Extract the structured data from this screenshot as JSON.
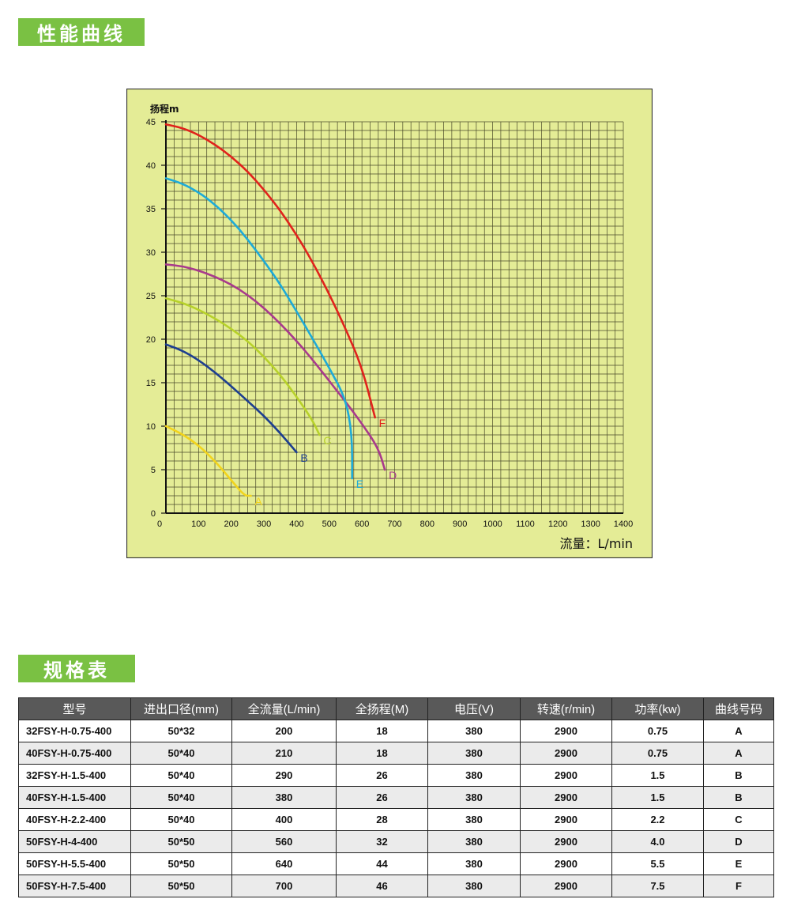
{
  "section1_title": "性能曲线",
  "section2_title": "规格表",
  "chart_data": {
    "type": "line",
    "ylabel": "扬程m",
    "xlabel": "流量：L/min",
    "xlim": [
      0,
      1400
    ],
    "ylim": [
      0,
      45
    ],
    "x_ticks": [
      "0",
      "100",
      "200",
      "300",
      "400",
      "500",
      "600",
      "700",
      "800",
      "900",
      "1000",
      "1100",
      "1200",
      "1300",
      "1400"
    ],
    "y_ticks": [
      "0",
      "5",
      "10",
      "15",
      "20",
      "25",
      "30",
      "35",
      "40",
      "45"
    ],
    "grid": true,
    "background": "#e4ec96",
    "series": [
      {
        "name": "A",
        "color": "#f2d41c",
        "dashed": false,
        "points": [
          [
            0,
            10
          ],
          [
            50,
            9.1
          ],
          [
            100,
            7.8
          ],
          [
            150,
            6
          ],
          [
            200,
            3.8
          ],
          [
            240,
            2
          ],
          [
            260,
            2
          ]
        ]
      },
      {
        "name": "B",
        "color": "#1e3f8f",
        "dashed": false,
        "points": [
          [
            0,
            19.4
          ],
          [
            50,
            18.7
          ],
          [
            100,
            17.6
          ],
          [
            150,
            16.2
          ],
          [
            200,
            14.6
          ],
          [
            250,
            12.9
          ],
          [
            300,
            11.2
          ],
          [
            350,
            9.2
          ],
          [
            400,
            7
          ]
        ]
      },
      {
        "name": "C",
        "color": "#b7d12a",
        "dashed": false,
        "points": [
          [
            0,
            24.7
          ],
          [
            50,
            24.2
          ],
          [
            100,
            23.4
          ],
          [
            150,
            22.4
          ],
          [
            200,
            21.2
          ],
          [
            250,
            19.8
          ],
          [
            300,
            18
          ],
          [
            350,
            15.9
          ],
          [
            400,
            13.4
          ],
          [
            450,
            10.6
          ],
          [
            470,
            9
          ]
        ]
      },
      {
        "name": "D",
        "color": "#a83a8c",
        "dashed": false,
        "points": [
          [
            0,
            28.6
          ],
          [
            50,
            28.4
          ],
          [
            100,
            27.9
          ],
          [
            150,
            27.2
          ],
          [
            200,
            26.3
          ],
          [
            250,
            25.1
          ],
          [
            300,
            23.6
          ],
          [
            350,
            21.8
          ],
          [
            400,
            19.8
          ],
          [
            450,
            17.6
          ],
          [
            500,
            15.2
          ],
          [
            550,
            12.8
          ],
          [
            600,
            10.3
          ],
          [
            650,
            7.5
          ],
          [
            670,
            5
          ]
        ]
      },
      {
        "name": "E",
        "color": "#1eaad7",
        "dashed": false,
        "points": [
          [
            0,
            38.5
          ],
          [
            50,
            37.9
          ],
          [
            100,
            36.9
          ],
          [
            150,
            35.5
          ],
          [
            200,
            33.7
          ],
          [
            250,
            31.5
          ],
          [
            300,
            29
          ],
          [
            350,
            26.3
          ],
          [
            400,
            23.2
          ],
          [
            450,
            20
          ],
          [
            500,
            16.7
          ],
          [
            550,
            13.2
          ],
          [
            570,
            9
          ],
          [
            570,
            4
          ]
        ]
      },
      {
        "name": "F",
        "color": "#e0231c",
        "dashed": false,
        "points": [
          [
            0,
            44.7
          ],
          [
            50,
            44.3
          ],
          [
            100,
            43.5
          ],
          [
            150,
            42.4
          ],
          [
            200,
            41
          ],
          [
            250,
            39.3
          ],
          [
            300,
            37.2
          ],
          [
            350,
            34.8
          ],
          [
            400,
            32
          ],
          [
            450,
            28.8
          ],
          [
            500,
            25.2
          ],
          [
            550,
            21.2
          ],
          [
            600,
            16.8
          ],
          [
            640,
            11
          ]
        ]
      }
    ]
  },
  "table": {
    "headers": [
      "型号",
      "进出口径(mm)",
      "全流量(L/min)",
      "全扬程(M)",
      "电压(V)",
      "转速(r/min)",
      "功率(kw)",
      "曲线号码"
    ],
    "rows": [
      [
        "32FSY-H-0.75-400",
        "50*32",
        "200",
        "18",
        "380",
        "2900",
        "0.75",
        "A"
      ],
      [
        "40FSY-H-0.75-400",
        "50*40",
        "210",
        "18",
        "380",
        "2900",
        "0.75",
        "A"
      ],
      [
        "32FSY-H-1.5-400",
        "50*40",
        "290",
        "26",
        "380",
        "2900",
        "1.5",
        "B"
      ],
      [
        "40FSY-H-1.5-400",
        "50*40",
        "380",
        "26",
        "380",
        "2900",
        "1.5",
        "B"
      ],
      [
        "40FSY-H-2.2-400",
        "50*40",
        "400",
        "28",
        "380",
        "2900",
        "2.2",
        "C"
      ],
      [
        "50FSY-H-4-400",
        "50*50",
        "560",
        "32",
        "380",
        "2900",
        "4.0",
        "D"
      ],
      [
        "50FSY-H-5.5-400",
        "50*50",
        "640",
        "44",
        "380",
        "2900",
        "5.5",
        "E"
      ],
      [
        "50FSY-H-7.5-400",
        "50*50",
        "700",
        "46",
        "380",
        "2900",
        "7.5",
        "F"
      ]
    ]
  }
}
